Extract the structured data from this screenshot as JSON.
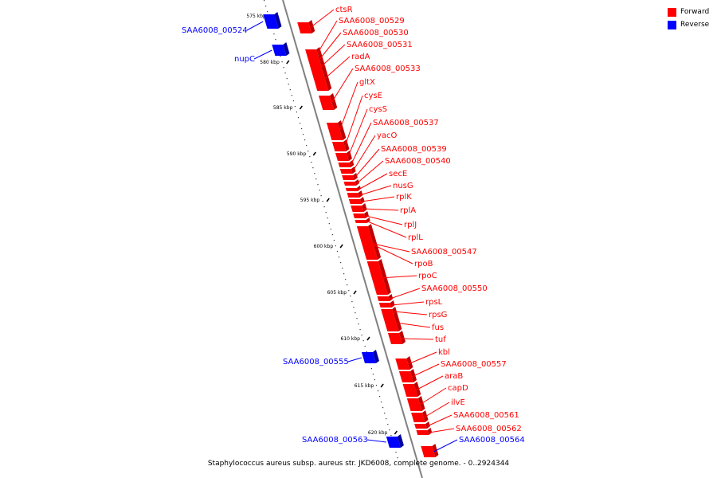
{
  "title": "Staphylococcus aureus subsp. aureus str. JKD6008, complete genome. - 0..2924344",
  "legend": [
    {
      "label": "Forward",
      "color": "#ff0000"
    },
    {
      "label": "Reverse",
      "color": "#0000ff"
    }
  ],
  "colors": {
    "forward": "#ff0000",
    "reverse": "#0000ff",
    "backbone": "#808080"
  },
  "ticks": [
    "575 kbp",
    "580 kbp",
    "585 kbp",
    "590 kbp",
    "595 kbp",
    "600 kbp",
    "605 kbp",
    "610 kbp",
    "615 kbp",
    "620 kbp"
  ],
  "genes": [
    {
      "name": "SAA6008_00524",
      "strand": "reverse"
    },
    {
      "name": "ctsR",
      "strand": "forward"
    },
    {
      "name": "SAA6008_00529",
      "strand": "forward"
    },
    {
      "name": "SAA6008_00530",
      "strand": "forward"
    },
    {
      "name": "SAA6008_00531",
      "strand": "forward"
    },
    {
      "name": "nupC",
      "strand": "reverse"
    },
    {
      "name": "radA",
      "strand": "forward"
    },
    {
      "name": "SAA6008_00533",
      "strand": "forward"
    },
    {
      "name": "gltX",
      "strand": "forward"
    },
    {
      "name": "cysE",
      "strand": "forward"
    },
    {
      "name": "cysS",
      "strand": "forward"
    },
    {
      "name": "SAA6008_00537",
      "strand": "forward"
    },
    {
      "name": "yacO",
      "strand": "forward"
    },
    {
      "name": "SAA6008_00539",
      "strand": "forward"
    },
    {
      "name": "SAA6008_00540",
      "strand": "forward"
    },
    {
      "name": "secE",
      "strand": "forward"
    },
    {
      "name": "nusG",
      "strand": "forward"
    },
    {
      "name": "rplK",
      "strand": "forward"
    },
    {
      "name": "rplA",
      "strand": "forward"
    },
    {
      "name": "rplJ",
      "strand": "forward"
    },
    {
      "name": "rplL",
      "strand": "forward"
    },
    {
      "name": "SAA6008_00547",
      "strand": "forward"
    },
    {
      "name": "rpoB",
      "strand": "forward"
    },
    {
      "name": "rpoC",
      "strand": "forward"
    },
    {
      "name": "SAA6008_00550",
      "strand": "forward"
    },
    {
      "name": "rpsL",
      "strand": "forward"
    },
    {
      "name": "rpsG",
      "strand": "forward"
    },
    {
      "name": "fus",
      "strand": "forward"
    },
    {
      "name": "tuf",
      "strand": "forward"
    },
    {
      "name": "SAA6008_00555",
      "strand": "reverse"
    },
    {
      "name": "kbl",
      "strand": "forward"
    },
    {
      "name": "SAA6008_00557",
      "strand": "forward"
    },
    {
      "name": "araB",
      "strand": "forward"
    },
    {
      "name": "capD",
      "strand": "forward"
    },
    {
      "name": "ilvE",
      "strand": "forward"
    },
    {
      "name": "SAA6008_00561",
      "strand": "forward"
    },
    {
      "name": "SAA6008_00562",
      "strand": "forward"
    },
    {
      "name": "SAA6008_00563",
      "strand": "reverse"
    },
    {
      "name": "SAA6008_00564",
      "strand": "forward"
    }
  ]
}
